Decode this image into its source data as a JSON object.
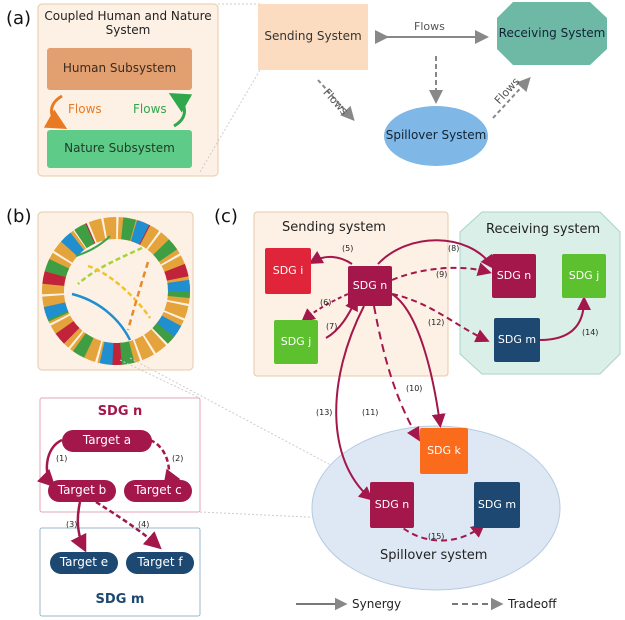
{
  "panel_a": {
    "letter": "(a)",
    "chns_title": "Coupled Human and Nature System",
    "human": "Human Subsystem",
    "nature": "Nature Subsystem",
    "flows_left": "Flows",
    "flows_right": "Flows",
    "sending": "Sending System",
    "receiving": "Receiving System",
    "spillover": "Spillover System",
    "flows_top": "Flows",
    "flows_diag_left": "Flows",
    "flows_diag_right": "Flows"
  },
  "panel_b": {
    "letter": "(b)",
    "sdg_n_title": "SDG n",
    "target_a": "Target a",
    "target_b": "Target b",
    "target_c": "Target c",
    "target_e": "Target e",
    "target_f": "Target f",
    "sdg_m_title": "SDG m",
    "l1": "(1)",
    "l2": "(2)",
    "l3": "(3)",
    "l4": "(4)"
  },
  "panel_c": {
    "letter": "(c)",
    "sending_title": "Sending system",
    "receiving_title": "Receiving system",
    "spillover_title": "Spillover system",
    "s_sdg_i": "SDG i",
    "s_sdg_n": "SDG n",
    "s_sdg_j": "SDG j",
    "r_sdg_n": "SDG n",
    "r_sdg_j": "SDG j",
    "r_sdg_m": "SDG m",
    "sp_sdg_k": "SDG k",
    "sp_sdg_n": "SDG n",
    "sp_sdg_m": "SDG m",
    "l5": "(5)",
    "l6": "(6)",
    "l7": "(7)",
    "l8": "(8)",
    "l9": "(9)",
    "l10": "(10)",
    "l11": "(11)",
    "l12": "(12)",
    "l13": "(13)",
    "l14": "(14)",
    "l15": "(15)"
  },
  "legend": {
    "synergy": "Synergy",
    "tradeoff": "Tradeoff"
  },
  "colors": {
    "human": "#e2a071",
    "nature": "#5fcb88",
    "sending": "#fbdcc0",
    "receiving": "#6db9a6",
    "spillover": "#7fb8e6",
    "sdg_i": "#e0253a",
    "sdg_n": "#a3174b",
    "sdg_j": "#5cc02f",
    "sdg_m": "#1c4871",
    "sdg_k": "#fb6b1c",
    "arrow": "#a3174b"
  }
}
